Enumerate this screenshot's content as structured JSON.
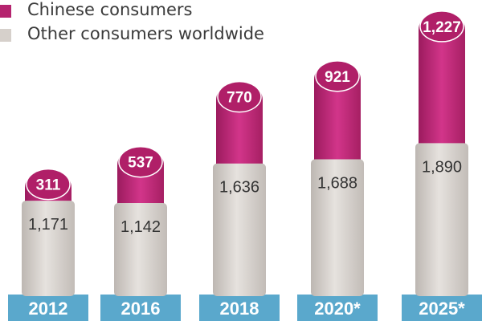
{
  "legend": {
    "chinese": {
      "label": "Chinese consumers",
      "color": "#b5246f"
    },
    "other": {
      "label": "Other consumers worldwide",
      "color": "#d6d0cb"
    }
  },
  "chart_data": {
    "type": "bar",
    "stacked": true,
    "categories": [
      "2012",
      "2016",
      "2018",
      "2020*",
      "2025*"
    ],
    "series": [
      {
        "name": "Other consumers worldwide",
        "values": [
          1171,
          1142,
          1636,
          1688,
          1890
        ],
        "color": "#d6d0cb"
      },
      {
        "name": "Chinese consumers",
        "values": [
          311,
          537,
          770,
          921,
          1227
        ],
        "color": "#b5246f"
      }
    ],
    "value_labels": {
      "Other consumers worldwide": [
        "1,171",
        "1,142",
        "1,636",
        "1,688",
        "1,890"
      ],
      "Chinese consumers": [
        "311",
        "537",
        "770",
        "921",
        "1,227"
      ]
    },
    "title": "",
    "xlabel": "",
    "ylabel": "",
    "legend_position": "top-left",
    "grid": false,
    "category_label_color": "#5aa8cc"
  }
}
